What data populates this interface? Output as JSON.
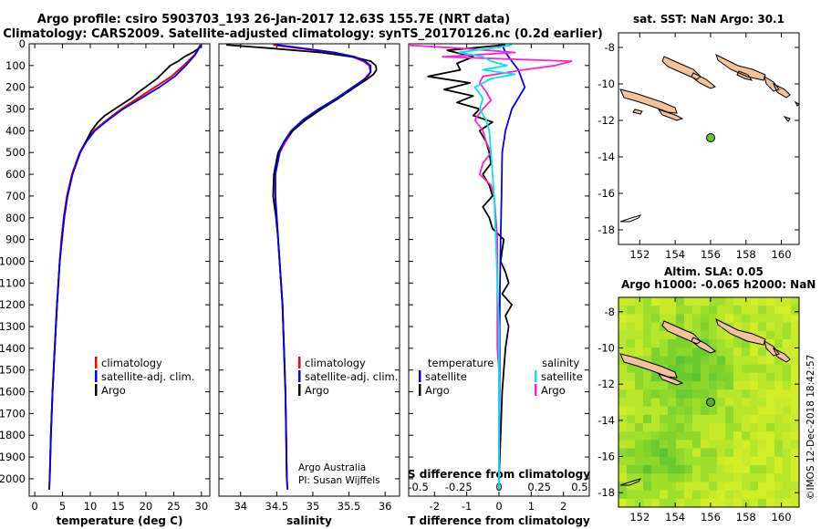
{
  "header": {
    "title_line1": "Argo profile: csiro 5903703_193 26-Jan-2017 12.63S 155.7E (NRT data)",
    "title_line2": "Climatology: CARS2009. Satellite-adjusted climatology: synTS_20170126.nc (0.2d earlier)"
  },
  "credits": {
    "line1": "Argo Australia",
    "line2": "PI: Susan Wijffels",
    "stamp": "©IMOS 12-Dec-2018 18:42:57"
  },
  "colors": {
    "climatology": "#ff0000",
    "satellite": "#0000ff",
    "argo": "#000000",
    "s_satellite": "#00e5ee",
    "s_argo": "#ff22cc"
  },
  "chart_data": [
    {
      "type": "line",
      "panel": "temperature",
      "xlabel": "temperature (deg C)",
      "ylabel": "",
      "xlim": [
        -1,
        31.5
      ],
      "ylim": [
        2080,
        0
      ],
      "xticks": [
        0,
        5,
        10,
        15,
        20,
        25,
        30
      ],
      "yticks": [
        0,
        100,
        200,
        300,
        400,
        500,
        600,
        700,
        800,
        900,
        1000,
        1100,
        1200,
        1300,
        1400,
        1500,
        1600,
        1700,
        1800,
        1900,
        2000
      ],
      "ytick_labels": [
        "0",
        "100",
        "200",
        "300",
        "400",
        "500",
        "600",
        "700",
        "800",
        "900",
        "1000",
        "1100",
        "1200",
        "1300",
        "1400",
        "1500",
        "1600",
        "1700",
        "1800",
        "1900",
        "2000"
      ],
      "legend": [
        "climatology",
        "satellite-adj. clim.",
        "Argo"
      ],
      "series": [
        {
          "key": "climatology",
          "depth": [
            5,
            50,
            100,
            150,
            200,
            250,
            300,
            350,
            400,
            450,
            500,
            600,
            700,
            800,
            900,
            1000,
            1200,
            1400,
            1600,
            1800,
            2000,
            2050
          ],
          "values": [
            29.8,
            28.8,
            26.8,
            24.6,
            21.6,
            18.6,
            15.6,
            13.0,
            10.6,
            9.2,
            8.1,
            6.7,
            5.8,
            5.2,
            4.8,
            4.5,
            4.0,
            3.6,
            3.2,
            2.9,
            2.7,
            2.6
          ]
        },
        {
          "key": "satellite",
          "depth": [
            5,
            50,
            100,
            150,
            200,
            250,
            300,
            350,
            400,
            450,
            500,
            600,
            700,
            800,
            900,
            1000,
            1200,
            1400,
            1600,
            1800,
            2000,
            2050
          ],
          "values": [
            29.9,
            28.9,
            27.2,
            25.2,
            22.4,
            19.2,
            15.9,
            13.2,
            10.8,
            9.3,
            8.2,
            6.8,
            5.9,
            5.3,
            4.9,
            4.5,
            4.0,
            3.6,
            3.2,
            2.9,
            2.7,
            2.6
          ]
        },
        {
          "key": "argo",
          "depth": [
            5,
            20,
            40,
            60,
            80,
            100,
            130,
            160,
            190,
            220,
            250,
            280,
            300,
            330,
            360,
            400,
            450,
            500,
            600,
            700,
            800,
            900,
            1000,
            1200,
            1400,
            1600,
            1800,
            2000
          ],
          "values": [
            30.0,
            29.6,
            28.4,
            26.9,
            25.8,
            24.4,
            23.2,
            22.0,
            20.4,
            18.8,
            17.4,
            15.6,
            14.4,
            12.6,
            11.4,
            10.2,
            9.2,
            8.2,
            6.8,
            5.9,
            5.3,
            4.9,
            4.5,
            4.0,
            3.6,
            3.2,
            2.9,
            2.7
          ]
        }
      ]
    },
    {
      "type": "line",
      "panel": "salinity",
      "xlabel": "salinity",
      "ylabel": "",
      "xlim": [
        33.7,
        36.2
      ],
      "ylim": [
        2080,
        0
      ],
      "xticks": [
        34,
        34.5,
        35,
        35.5,
        36
      ],
      "xtick_labels": [
        "34",
        "34.5",
        "35",
        "35.5",
        "36"
      ],
      "legend": [
        "climatology",
        "satellite-adj. clim.",
        "Argo"
      ],
      "series": [
        {
          "key": "climatology",
          "depth": [
            5,
            20,
            40,
            60,
            80,
            100,
            130,
            160,
            200,
            250,
            300,
            350,
            400,
            450,
            500,
            600,
            700,
            800,
            900,
            1000,
            1200,
            1400,
            1600,
            1800,
            2000,
            2050
          ],
          "values": [
            34.45,
            34.8,
            35.25,
            35.55,
            35.7,
            35.78,
            35.8,
            35.74,
            35.55,
            35.35,
            35.1,
            34.88,
            34.72,
            34.62,
            34.54,
            34.48,
            34.48,
            34.5,
            34.52,
            34.54,
            34.58,
            34.6,
            34.62,
            34.63,
            34.64,
            34.65
          ]
        },
        {
          "key": "satellite",
          "depth": [
            5,
            20,
            40,
            60,
            80,
            100,
            130,
            160,
            200,
            250,
            300,
            350,
            400,
            450,
            500,
            600,
            700,
            800,
            900,
            1000,
            1200,
            1400,
            1600,
            1800,
            2000,
            2050
          ],
          "values": [
            34.5,
            34.85,
            35.3,
            35.58,
            35.72,
            35.8,
            35.8,
            35.72,
            35.55,
            35.33,
            35.08,
            34.86,
            34.7,
            34.6,
            34.54,
            34.48,
            34.48,
            34.5,
            34.52,
            34.54,
            34.58,
            34.6,
            34.62,
            34.63,
            34.64,
            34.65
          ]
        },
        {
          "key": "argo",
          "depth": [
            5,
            20,
            40,
            60,
            80,
            100,
            120,
            140,
            160,
            200,
            250,
            300,
            350,
            400,
            450,
            500,
            600,
            700,
            800,
            900,
            1000,
            1200,
            1400,
            1600,
            1800,
            2000
          ],
          "values": [
            33.8,
            34.4,
            35.1,
            35.55,
            35.8,
            35.87,
            35.88,
            35.84,
            35.76,
            35.58,
            35.36,
            35.12,
            34.9,
            34.72,
            34.6,
            34.52,
            34.46,
            34.45,
            34.49,
            34.52,
            34.54,
            34.58,
            34.6,
            34.62,
            34.63,
            34.64
          ]
        }
      ]
    },
    {
      "type": "line",
      "panel": "difference",
      "xlabel": "T difference from climatology",
      "top_axis_label": "S difference from climatology",
      "xlim": [
        -2.8,
        2.8
      ],
      "ylim": [
        2080,
        0
      ],
      "xticks": [
        -2,
        -1,
        0,
        1,
        2
      ],
      "top_xticks": [
        -0.5,
        -0.25,
        0,
        0.25,
        0.5
      ],
      "top_xtick_labels": [
        "-0.5",
        "-0.25",
        "0",
        "0.25",
        "0.5"
      ],
      "legend_left_title": "temperature",
      "legend_right_title": "salinity",
      "legend_left": [
        "satellite",
        "Argo"
      ],
      "legend_right": [
        "satellite",
        "Argo"
      ],
      "series": [
        {
          "key": "t_satellite",
          "depth": [
            5,
            40,
            80,
            120,
            160,
            200,
            300,
            400,
            500,
            700,
            900,
            1100,
            1300,
            1500,
            1700,
            1900,
            2050
          ],
          "values": [
            0.1,
            0.2,
            0.4,
            0.6,
            0.7,
            0.8,
            0.4,
            0.2,
            0.1,
            0.08,
            0.05,
            0.03,
            0.02,
            0.02,
            0.01,
            0.0,
            0.0
          ]
        },
        {
          "key": "t_argo",
          "depth": [
            5,
            30,
            60,
            90,
            120,
            150,
            180,
            210,
            240,
            270,
            300,
            330,
            360,
            400,
            450,
            500,
            550,
            600,
            650,
            700,
            750,
            800,
            850,
            900,
            950,
            1000,
            1050,
            1100,
            1150,
            1200,
            1250,
            1300,
            1400,
            1500,
            1600,
            1800,
            2000
          ],
          "values": [
            0.2,
            -1.6,
            -0.8,
            -1.3,
            -1.2,
            -2.2,
            -0.9,
            -1.7,
            -0.8,
            -1.3,
            -0.6,
            -0.8,
            -0.2,
            -0.6,
            -0.4,
            -0.3,
            -0.25,
            -0.5,
            -0.3,
            -0.2,
            -0.5,
            -0.3,
            -0.2,
            0.15,
            0.1,
            0.05,
            0.2,
            0.3,
            0.1,
            0.4,
            0.2,
            0.3,
            0.2,
            0.15,
            0.1,
            0.05,
            0.0
          ]
        },
        {
          "key": "s_satellite",
          "depth": [
            5,
            20,
            40,
            60,
            80,
            100,
            120,
            140,
            160,
            200,
            250,
            300,
            350,
            400,
            500,
            700,
            900,
            1100,
            1300,
            1500,
            1700,
            1900,
            2050
          ],
          "values": [
            0.08,
            -0.04,
            -0.25,
            -0.1,
            -0.05,
            0.05,
            -0.1,
            0.1,
            -0.05,
            -0.15,
            -0.1,
            -0.12,
            -0.08,
            -0.06,
            -0.05,
            -0.03,
            -0.02,
            -0.01,
            0.0,
            0.0,
            0.0,
            0.0,
            0.0
          ]
        },
        {
          "key": "s_argo",
          "depth": [
            5,
            20,
            40,
            60,
            80,
            100,
            120,
            150,
            180,
            220,
            260,
            300,
            350,
            400,
            450,
            500,
            550,
            600,
            650,
            700,
            800,
            900,
            1000,
            1100,
            1200,
            1300,
            1400,
            1500,
            1600,
            1800,
            2000
          ],
          "values": [
            -0.6,
            -0.25,
            0.1,
            -0.35,
            0.45,
            0.35,
            0.15,
            -0.1,
            -0.12,
            -0.08,
            -0.05,
            -0.1,
            -0.15,
            -0.1,
            -0.08,
            -0.05,
            -0.1,
            -0.12,
            -0.05,
            -0.03,
            -0.02,
            -0.01,
            -0.01,
            -0.01,
            -0.01,
            -0.01,
            -0.01,
            0.0,
            0.0,
            0.0,
            0.0
          ]
        }
      ]
    },
    {
      "type": "scatter",
      "panel": "sst_map",
      "title": "sat. SST: NaN Argo: 30.1",
      "xlim": [
        150.8,
        161
      ],
      "ylim": [
        -18.8,
        -7.2
      ],
      "xticks": [
        152,
        154,
        156,
        158,
        160
      ],
      "yticks": [
        -8,
        -10,
        -12,
        -14,
        -16,
        -18
      ],
      "x": [
        155.7
      ],
      "y": [
        -12.63
      ]
    },
    {
      "type": "heatmap",
      "panel": "sla_map",
      "title_line1": "Altim. SLA: 0.05",
      "title_line2": "Argo h1000: -0.065 h2000: NaN",
      "xlim": [
        150.8,
        161
      ],
      "ylim": [
        -18.8,
        -7.2
      ],
      "xticks": [
        152,
        154,
        156,
        158,
        160
      ],
      "yticks": [
        -8,
        -10,
        -12,
        -14,
        -16,
        -18
      ],
      "x": [
        155.7
      ],
      "y": [
        -12.63
      ]
    }
  ]
}
